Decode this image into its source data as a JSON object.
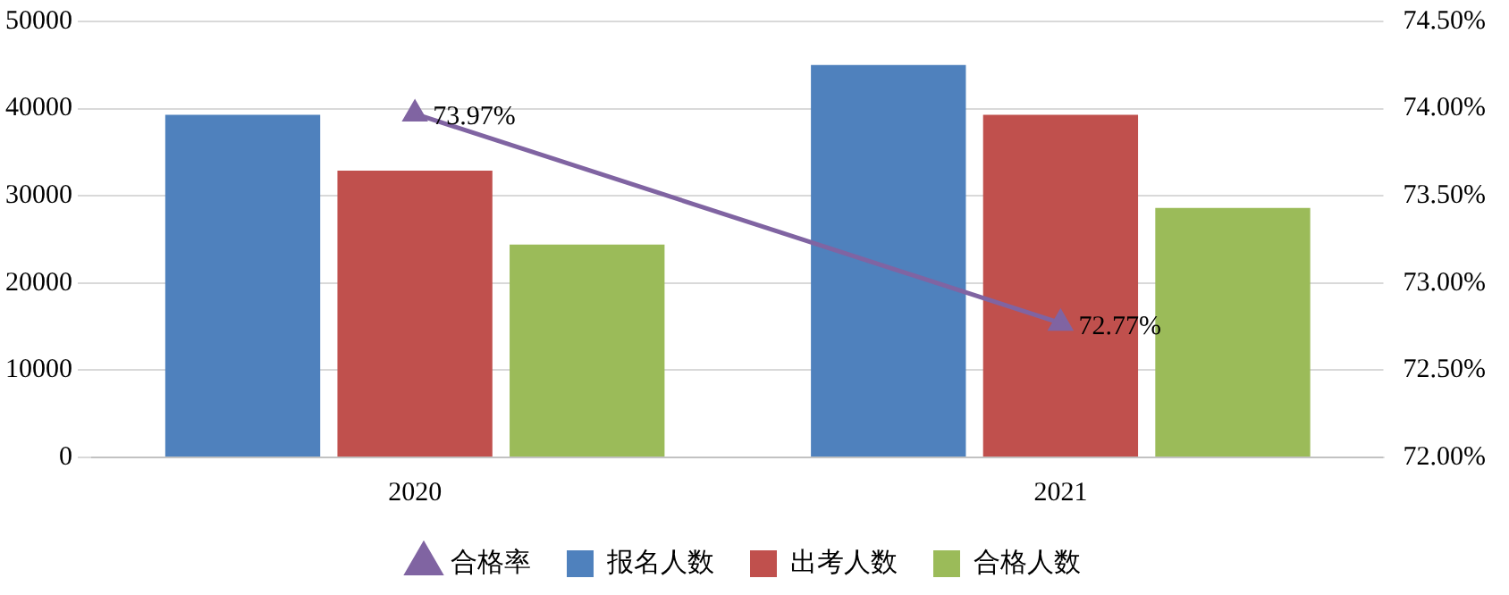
{
  "chart_data": {
    "type": "bar",
    "categories": [
      "2020",
      "2021"
    ],
    "series": [
      {
        "name": "报名人数",
        "color": "#4f81bd",
        "values": [
          39300,
          45000
        ]
      },
      {
        "name": "出考人数",
        "color": "#c0504d",
        "values": [
          32900,
          39300
        ]
      },
      {
        "name": "合格人数",
        "color": "#9bbb59",
        "values": [
          24400,
          28600
        ]
      },
      {
        "name": "合格率",
        "color": "#8064a2",
        "type": "line",
        "axis": "y2",
        "values": [
          73.97,
          72.77
        ],
        "value_labels": [
          "73.97%",
          "72.77%"
        ],
        "marker": "triangle"
      }
    ],
    "ylim": [
      0,
      50000
    ],
    "yticks": [
      0,
      10000,
      20000,
      30000,
      40000,
      50000
    ],
    "y2lim": [
      72,
      74.5
    ],
    "y2ticks": [
      {
        "value": 72,
        "label": "72.00%"
      },
      {
        "value": 72.5,
        "label": "72.50%"
      },
      {
        "value": 73,
        "label": "73.00%"
      },
      {
        "value": 73.5,
        "label": "73.50%"
      },
      {
        "value": 74,
        "label": "74.00%"
      },
      {
        "value": 74.5,
        "label": "74.50%"
      }
    ],
    "grid": "y",
    "legend": "bottom"
  }
}
